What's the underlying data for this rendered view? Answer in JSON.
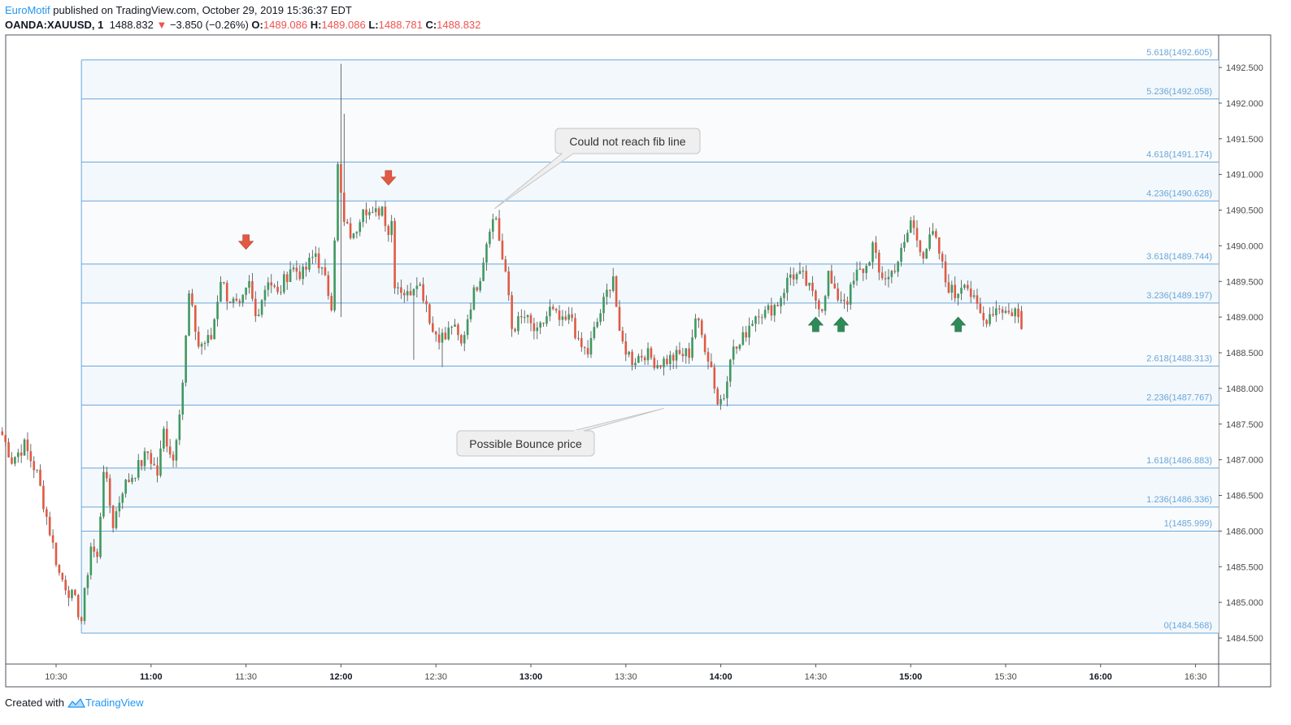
{
  "header": {
    "author": "EuroMotif",
    "published_text": " published on TradingView.com, October 29, 2019 15:36:37 EDT",
    "symbol": "OANDA:XAUUSD, 1",
    "last_price": "1488.832",
    "change_arrow": "▼",
    "change": "−3.850 (−0.26%)",
    "o_label": "O:",
    "o_value": "1489.086",
    "h_label": "H:",
    "h_value": "1489.086",
    "l_label": "L:",
    "l_value": "1488.781",
    "c_label": "C:",
    "c_value": "1488.832"
  },
  "footer": {
    "created_with": "Created with",
    "brand": "TradingView"
  },
  "colors": {
    "up": "#3f9960",
    "down": "#e05a44",
    "fib": "#6aa6d8",
    "fib_fill": "#f3f8fc",
    "arrow_down": "#e05a44",
    "arrow_up": "#2e8b57"
  },
  "chart_data": {
    "type": "candlestick",
    "ylim": [
      1484.4,
      1492.9
    ],
    "y_ticks": [
      1484.5,
      1485.0,
      1485.5,
      1486.0,
      1486.5,
      1487.0,
      1487.5,
      1488.0,
      1488.5,
      1489.0,
      1489.5,
      1490.0,
      1490.5,
      1491.0,
      1491.5,
      1492.0,
      1492.5
    ],
    "y_tick_labels": [
      "1484.500",
      "1485.000",
      "1485.500",
      "1486.000",
      "1486.500",
      "1487.000",
      "1487.500",
      "1488.000",
      "1488.500",
      "1489.000",
      "1489.500",
      "1490.000",
      "1490.500",
      "1491.000",
      "1491.500",
      "1492.000",
      "1492.500"
    ],
    "x_ticks": [
      {
        "label": "10:30",
        "min": 630,
        "bold": false
      },
      {
        "label": "11:00",
        "min": 660,
        "bold": true
      },
      {
        "label": "11:30",
        "min": 690,
        "bold": false
      },
      {
        "label": "12:00",
        "min": 720,
        "bold": true
      },
      {
        "label": "12:30",
        "min": 750,
        "bold": false
      },
      {
        "label": "13:00",
        "min": 780,
        "bold": true
      },
      {
        "label": "13:30",
        "min": 810,
        "bold": false
      },
      {
        "label": "14:00",
        "min": 840,
        "bold": true
      },
      {
        "label": "14:30",
        "min": 870,
        "bold": false
      },
      {
        "label": "15:00",
        "min": 900,
        "bold": true
      },
      {
        "label": "15:30",
        "min": 930,
        "bold": false
      },
      {
        "label": "16:00",
        "min": 960,
        "bold": true
      },
      {
        "label": "16:30",
        "min": 990,
        "bold": false
      }
    ],
    "fib_levels": [
      {
        "level": 5.618,
        "price": 1492.605,
        "label": "5.618(1492.605)"
      },
      {
        "level": 5.236,
        "price": 1492.058,
        "label": "5.236(1492.058)"
      },
      {
        "level": 4.618,
        "price": 1491.174,
        "label": "4.618(1491.174)"
      },
      {
        "level": 4.236,
        "price": 1490.628,
        "label": "4.236(1490.628)"
      },
      {
        "level": 3.618,
        "price": 1489.744,
        "label": "3.618(1489.744)"
      },
      {
        "level": 3.236,
        "price": 1489.197,
        "label": "3.236(1489.197)"
      },
      {
        "level": 2.618,
        "price": 1488.313,
        "label": "2.618(1488.313)"
      },
      {
        "level": 2.236,
        "price": 1487.767,
        "label": "2.236(1487.767)"
      },
      {
        "level": 1.618,
        "price": 1486.883,
        "label": "1.618(1486.883)"
      },
      {
        "level": 1.236,
        "price": 1486.336,
        "label": "1.236(1486.336)"
      },
      {
        "level": 1,
        "price": 1485.999,
        "label": "1(1485.999)"
      },
      {
        "level": 0,
        "price": 1484.568,
        "label": "0(1484.568)"
      }
    ],
    "fib_start_min": 638,
    "callouts": [
      {
        "text": "Could not reach fib line",
        "anchor_min": 768.5,
        "anchor_price": 1490.52
      },
      {
        "text": "Possible Bounce price",
        "anchor_min": 822,
        "anchor_price": 1487.72
      }
    ],
    "signal_arrows": [
      {
        "direction": "down",
        "min": 690,
        "price": 1489.95
      },
      {
        "direction": "down",
        "min": 735,
        "price": 1490.85
      },
      {
        "direction": "up",
        "min": 870,
        "price": 1489.0
      },
      {
        "direction": "up",
        "min": 878,
        "price": 1489.0
      },
      {
        "direction": "up",
        "min": 915,
        "price": 1489.0
      }
    ],
    "key_points": [
      {
        "min": 613,
        "price": 1487.35
      },
      {
        "min": 616,
        "price": 1487.0
      },
      {
        "min": 620,
        "price": 1487.2
      },
      {
        "min": 624,
        "price": 1486.8
      },
      {
        "min": 628,
        "price": 1486.0
      },
      {
        "min": 631,
        "price": 1485.4
      },
      {
        "min": 636,
        "price": 1485.0
      },
      {
        "min": 638,
        "price": 1484.75
      },
      {
        "min": 641,
        "price": 1485.8
      },
      {
        "min": 643,
        "price": 1485.6
      },
      {
        "min": 645,
        "price": 1486.9
      },
      {
        "min": 648,
        "price": 1486.1
      },
      {
        "min": 651,
        "price": 1486.6
      },
      {
        "min": 656,
        "price": 1486.9
      },
      {
        "min": 659,
        "price": 1487.1
      },
      {
        "min": 662,
        "price": 1486.8
      },
      {
        "min": 664,
        "price": 1487.4
      },
      {
        "min": 667,
        "price": 1487.0
      },
      {
        "min": 670,
        "price": 1488.1
      },
      {
        "min": 672,
        "price": 1489.3
      },
      {
        "min": 675,
        "price": 1488.6
      },
      {
        "min": 679,
        "price": 1488.7
      },
      {
        "min": 682,
        "price": 1489.55
      },
      {
        "min": 684,
        "price": 1489.3
      },
      {
        "min": 688,
        "price": 1489.1
      },
      {
        "min": 691,
        "price": 1489.45
      },
      {
        "min": 693,
        "price": 1489.0
      },
      {
        "min": 697,
        "price": 1489.55
      },
      {
        "min": 700,
        "price": 1489.3
      },
      {
        "min": 704,
        "price": 1489.7
      },
      {
        "min": 708,
        "price": 1489.6
      },
      {
        "min": 712,
        "price": 1489.9
      },
      {
        "min": 715,
        "price": 1489.5
      },
      {
        "min": 717,
        "price": 1489.2
      },
      {
        "min": 719,
        "price": 1491.1
      },
      {
        "min": 721,
        "price": 1490.3
      },
      {
        "min": 724,
        "price": 1490.1
      },
      {
        "min": 727,
        "price": 1490.6
      },
      {
        "min": 730,
        "price": 1490.4
      },
      {
        "min": 733,
        "price": 1490.55
      },
      {
        "min": 735,
        "price": 1490.2
      },
      {
        "min": 736,
        "price": 1490.35
      },
      {
        "min": 737,
        "price": 1489.5
      },
      {
        "min": 741,
        "price": 1489.3
      },
      {
        "min": 744,
        "price": 1489.55
      },
      {
        "min": 747,
        "price": 1489.2
      },
      {
        "min": 749,
        "price": 1488.8
      },
      {
        "min": 753,
        "price": 1488.7
      },
      {
        "min": 755,
        "price": 1488.9
      },
      {
        "min": 758,
        "price": 1488.6
      },
      {
        "min": 761,
        "price": 1489.2
      },
      {
        "min": 764,
        "price": 1489.6
      },
      {
        "min": 767,
        "price": 1490.3
      },
      {
        "min": 769,
        "price": 1490.4
      },
      {
        "min": 771,
        "price": 1489.8
      },
      {
        "min": 773,
        "price": 1489.3
      },
      {
        "min": 774,
        "price": 1488.85
      },
      {
        "min": 778,
        "price": 1489.0
      },
      {
        "min": 782,
        "price": 1488.75
      },
      {
        "min": 786,
        "price": 1489.1
      },
      {
        "min": 790,
        "price": 1488.9
      },
      {
        "min": 793,
        "price": 1489.0
      },
      {
        "min": 795,
        "price": 1488.6
      },
      {
        "min": 798,
        "price": 1488.5
      },
      {
        "min": 800,
        "price": 1488.8
      },
      {
        "min": 803,
        "price": 1489.2
      },
      {
        "min": 806,
        "price": 1489.6
      },
      {
        "min": 808,
        "price": 1488.7
      },
      {
        "min": 812,
        "price": 1488.4
      },
      {
        "min": 816,
        "price": 1488.5
      },
      {
        "min": 820,
        "price": 1488.35
      },
      {
        "min": 826,
        "price": 1488.45
      },
      {
        "min": 830,
        "price": 1488.5
      },
      {
        "min": 832,
        "price": 1489.0
      },
      {
        "min": 835,
        "price": 1488.6
      },
      {
        "min": 837,
        "price": 1488.3
      },
      {
        "min": 839,
        "price": 1487.8
      },
      {
        "min": 841,
        "price": 1487.9
      },
      {
        "min": 843,
        "price": 1488.5
      },
      {
        "min": 846,
        "price": 1488.6
      },
      {
        "min": 849,
        "price": 1488.9
      },
      {
        "min": 852,
        "price": 1489.1
      },
      {
        "min": 854,
        "price": 1489.05
      },
      {
        "min": 858,
        "price": 1489.2
      },
      {
        "min": 862,
        "price": 1489.6
      },
      {
        "min": 866,
        "price": 1489.55
      },
      {
        "min": 869,
        "price": 1489.3
      },
      {
        "min": 872,
        "price": 1489.15
      },
      {
        "min": 874,
        "price": 1489.6
      },
      {
        "min": 876,
        "price": 1489.3
      },
      {
        "min": 880,
        "price": 1489.25
      },
      {
        "min": 883,
        "price": 1489.6
      },
      {
        "min": 886,
        "price": 1489.7
      },
      {
        "min": 888,
        "price": 1490.0
      },
      {
        "min": 890,
        "price": 1489.6
      },
      {
        "min": 893,
        "price": 1489.55
      },
      {
        "min": 896,
        "price": 1489.8
      },
      {
        "min": 898,
        "price": 1490.0
      },
      {
        "min": 900,
        "price": 1490.35
      },
      {
        "min": 902,
        "price": 1490.1
      },
      {
        "min": 904,
        "price": 1489.9
      },
      {
        "min": 907,
        "price": 1490.15
      },
      {
        "min": 909,
        "price": 1489.9
      },
      {
        "min": 911,
        "price": 1489.5
      },
      {
        "min": 914,
        "price": 1489.3
      },
      {
        "min": 917,
        "price": 1489.55
      },
      {
        "min": 920,
        "price": 1489.2
      },
      {
        "min": 923,
        "price": 1488.95
      },
      {
        "min": 926,
        "price": 1489.1
      },
      {
        "min": 928,
        "price": 1489.15
      },
      {
        "min": 931,
        "price": 1489.05
      },
      {
        "min": 933,
        "price": 1489.1
      },
      {
        "min": 935,
        "price": 1488.83
      }
    ]
  }
}
